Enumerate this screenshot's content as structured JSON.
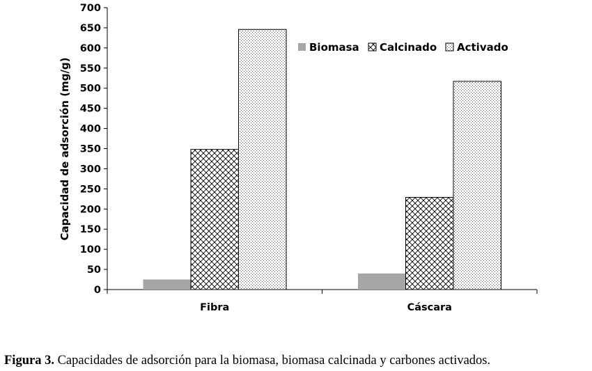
{
  "chart_data": {
    "type": "bar",
    "categories": [
      "Fibra",
      "Cáscara"
    ],
    "series": [
      {
        "name": "Biomasa",
        "values": [
          25,
          40
        ],
        "pattern": "solid-gray"
      },
      {
        "name": "Calcinado",
        "values": [
          348,
          229
        ],
        "pattern": "crosshatch"
      },
      {
        "name": "Activado",
        "values": [
          646,
          517
        ],
        "pattern": "dots"
      }
    ],
    "ylabel": "Capacidad de adsorción (mg/g)",
    "xlabel": "",
    "ylim": [
      0,
      700
    ],
    "yticks": [
      "0",
      "50",
      "100",
      "150",
      "200",
      "250",
      "300",
      "350",
      "400",
      "450",
      "500",
      "550",
      "600",
      "650",
      "700"
    ],
    "grid": false,
    "legend_position": "top-right"
  },
  "caption": {
    "label": "Figura 3.",
    "text": " Capacidades de adsorción para la biomasa, biomasa calcinada y carbones activados."
  },
  "colors": {
    "biomasa_fill": "#a6a6a6",
    "bar_outline": "#000000",
    "axis": "#000000"
  }
}
